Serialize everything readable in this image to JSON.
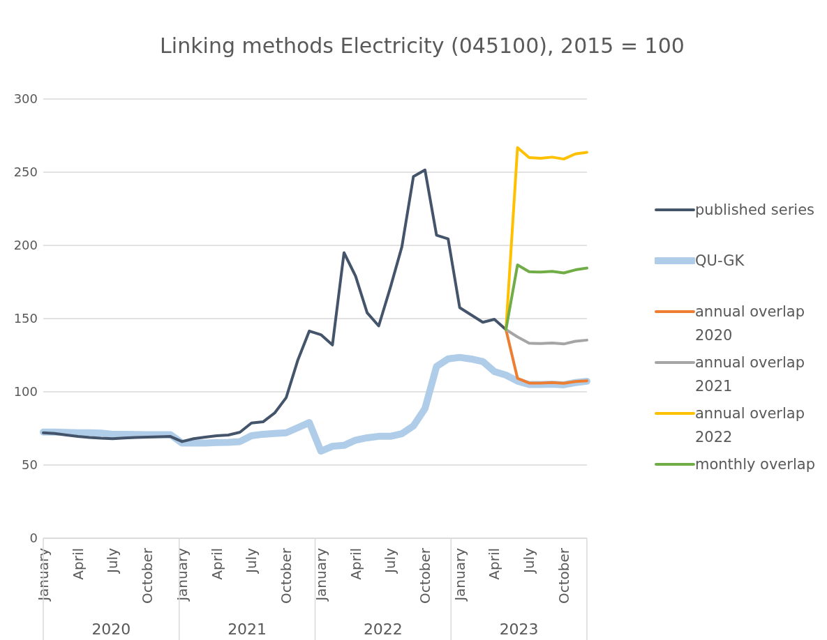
{
  "chart_data": {
    "type": "line",
    "title": "Linking methods Electricity (045100), 2015 = 100",
    "categories": [
      "January",
      null,
      null,
      "April",
      null,
      null,
      "July",
      null,
      null,
      "October",
      null,
      null,
      "January",
      null,
      null,
      "April",
      null,
      null,
      "July",
      null,
      null,
      "October",
      null,
      null,
      "January",
      null,
      null,
      "April",
      null,
      null,
      "July",
      null,
      null,
      "October",
      null,
      null,
      "January",
      null,
      null,
      "April",
      null,
      null,
      "July",
      null,
      null,
      "October",
      null,
      null
    ],
    "annotations": [
      "2020",
      "2021",
      "2022",
      "2023"
    ],
    "ylim": [
      0,
      300
    ],
    "yticks": [
      0,
      50,
      100,
      150,
      200,
      250,
      300
    ],
    "grid": "y",
    "legend": "right",
    "marker": "none",
    "line_style": "solid",
    "series": [
      {
        "name": "published series",
        "color": "#44546a",
        "values": [
          72,
          71.5,
          70.5,
          69.5,
          68.8,
          68.3,
          68,
          68.5,
          68.8,
          69,
          69.3,
          69.5,
          66,
          68,
          69,
          70,
          70.5,
          72.4,
          78.7,
          79.5,
          85.5,
          96,
          121.5,
          141.5,
          139,
          132,
          195,
          179,
          154,
          145,
          171,
          199,
          247,
          251.5,
          207,
          204.5,
          157.5,
          152.5,
          147.5,
          149.5,
          142.5,
          null,
          null,
          null,
          null,
          null,
          null,
          null
        ]
      },
      {
        "name": "QU-GK",
        "color": "#afcde9",
        "values": [
          72.5,
          72.5,
          72.3,
          72,
          72,
          71.8,
          71,
          71,
          70.8,
          70.7,
          70.7,
          70.7,
          65,
          65,
          65,
          65.3,
          65.5,
          66,
          70,
          71,
          71.5,
          72,
          75.5,
          79,
          59.5,
          62.8,
          63.4,
          67,
          68.6,
          69.6,
          69.6,
          71.4,
          76.7,
          88.6,
          117.3,
          122.5,
          123.5,
          122.4,
          120.7,
          113.8,
          111.4,
          107.3,
          105,
          105,
          105.2,
          104.8,
          106.3,
          107.2
        ]
      },
      {
        "name": "annual overlap 2020",
        "color": "#ed7d31",
        "values": [
          null,
          null,
          null,
          null,
          null,
          null,
          null,
          null,
          null,
          null,
          null,
          null,
          null,
          null,
          null,
          null,
          null,
          null,
          null,
          null,
          null,
          null,
          null,
          null,
          null,
          null,
          null,
          null,
          null,
          null,
          null,
          null,
          null,
          null,
          null,
          null,
          null,
          null,
          null,
          null,
          142.5,
          109.2,
          106,
          106,
          106.3,
          105.8,
          107,
          107.5
        ]
      },
      {
        "name": "annual overlap 2021",
        "color": "#a5a5a5",
        "values": [
          null,
          null,
          null,
          null,
          null,
          null,
          null,
          null,
          null,
          null,
          null,
          null,
          null,
          null,
          null,
          null,
          null,
          null,
          null,
          null,
          null,
          null,
          null,
          null,
          null,
          null,
          null,
          null,
          null,
          null,
          null,
          null,
          null,
          null,
          null,
          null,
          null,
          null,
          null,
          null,
          142.5,
          137.5,
          133.2,
          133,
          133.3,
          132.7,
          134.5,
          135.3
        ]
      },
      {
        "name": "annual overlap 2022",
        "color": "#ffc000",
        "values": [
          null,
          null,
          null,
          null,
          null,
          null,
          null,
          null,
          null,
          null,
          null,
          null,
          null,
          null,
          null,
          null,
          null,
          null,
          null,
          null,
          null,
          null,
          null,
          null,
          null,
          null,
          null,
          null,
          null,
          null,
          null,
          null,
          null,
          null,
          null,
          null,
          null,
          null,
          null,
          null,
          142.5,
          266.8,
          260,
          259.5,
          260.3,
          259,
          262.5,
          263.6
        ]
      },
      {
        "name": "monthly overlap",
        "color": "#70ad47",
        "values": [
          null,
          null,
          null,
          null,
          null,
          null,
          null,
          null,
          null,
          null,
          null,
          null,
          null,
          null,
          null,
          null,
          null,
          null,
          null,
          null,
          null,
          null,
          null,
          null,
          null,
          null,
          null,
          null,
          null,
          null,
          null,
          null,
          null,
          null,
          null,
          null,
          null,
          null,
          null,
          null,
          142.5,
          186.7,
          182,
          181.8,
          182.3,
          181.2,
          183.3,
          184.5
        ]
      }
    ]
  }
}
